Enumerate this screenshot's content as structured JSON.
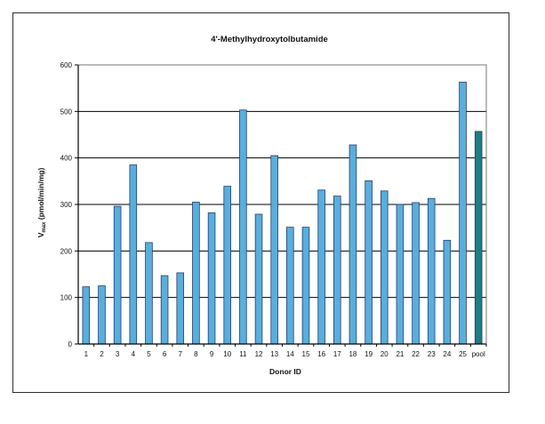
{
  "chart_data": {
    "type": "bar",
    "title": "4'-Methylhydroxytolbutamide",
    "xlabel": "Donor ID",
    "ylabel": {
      "prefix": "V",
      "subscript": "max",
      "suffix": " (pmol/min/mg)"
    },
    "ylim": [
      0,
      600
    ],
    "yticks": [
      0,
      100,
      200,
      300,
      400,
      500,
      600
    ],
    "grid": true,
    "categories": [
      "1",
      "2",
      "3",
      "4",
      "5",
      "6",
      "7",
      "8",
      "9",
      "10",
      "11",
      "12",
      "13",
      "14",
      "15",
      "16",
      "17",
      "18",
      "19",
      "20",
      "21",
      "22",
      "23",
      "24",
      "25",
      "pool"
    ],
    "values": [
      123,
      125,
      296,
      385,
      218,
      147,
      153,
      305,
      282,
      339,
      503,
      279,
      405,
      251,
      251,
      331,
      318,
      428,
      351,
      329,
      300,
      304,
      313,
      223,
      563,
      457
    ],
    "colors": {
      "donor_bar": "#5aaedc",
      "pool_bar": "#1f7d84",
      "bar_edge": "#1f3f6e",
      "grid": "#000000"
    }
  }
}
